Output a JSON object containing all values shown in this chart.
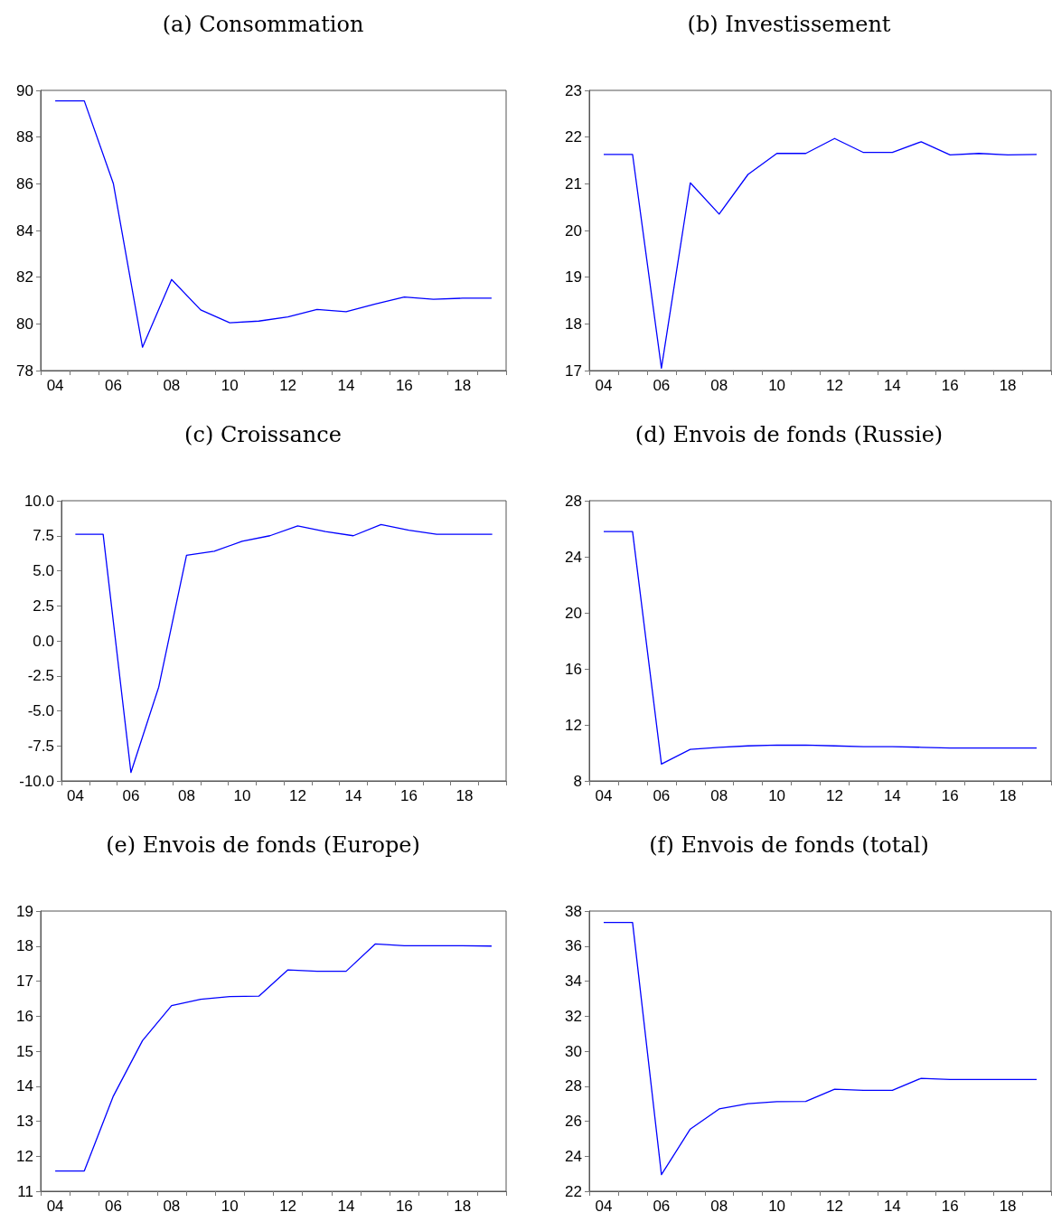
{
  "chart_data": [
    {
      "type": "line",
      "title": "(a) Consommation",
      "categories": [
        "04",
        null,
        "06",
        null,
        "08",
        null,
        "10",
        null,
        "12",
        null,
        "14",
        null,
        "16",
        null,
        "18",
        null
      ],
      "series": [
        {
          "color": "#0000ff",
          "values": [
            89.55,
            89.55,
            86.0,
            79.0,
            81.9,
            80.6,
            80.05,
            80.12,
            80.3,
            80.62,
            80.52,
            80.85,
            81.15,
            81.05,
            81.1,
            81.1
          ]
        }
      ],
      "ylim": [
        78,
        90
      ],
      "yticks": [
        78,
        80,
        82,
        84,
        86,
        88,
        90
      ],
      "marker": "none",
      "line_style": "solid"
    },
    {
      "type": "line",
      "title": "(b) Investissement",
      "categories": [
        "04",
        null,
        "06",
        null,
        "08",
        null,
        "10",
        null,
        "12",
        null,
        "14",
        null,
        "16",
        null,
        "18",
        null
      ],
      "series": [
        {
          "color": "#0000ff",
          "values": [
            21.63,
            21.63,
            17.05,
            21.02,
            20.35,
            21.2,
            21.65,
            21.65,
            21.97,
            21.67,
            21.67,
            21.9,
            21.62,
            21.65,
            21.62,
            21.63
          ]
        }
      ],
      "ylim": [
        17,
        23
      ],
      "yticks": [
        17,
        18,
        19,
        20,
        21,
        22,
        23
      ],
      "marker": "none",
      "line_style": "solid"
    },
    {
      "type": "line",
      "title": "(c) Croissance",
      "categories": [
        "04",
        null,
        "06",
        null,
        "08",
        null,
        "10",
        null,
        "12",
        null,
        "14",
        null,
        "16",
        null,
        "18",
        null
      ],
      "series": [
        {
          "color": "#0000ff",
          "values": [
            7.6,
            7.6,
            -9.4,
            -3.3,
            6.1,
            6.4,
            7.1,
            7.5,
            8.2,
            7.8,
            7.5,
            8.3,
            7.9,
            7.6,
            7.6,
            7.6
          ]
        }
      ],
      "ylim": [
        -10,
        10
      ],
      "yticks": [
        {
          "value": -10,
          "label": "-10.0"
        },
        {
          "value": -7.5,
          "label": "-7.5"
        },
        {
          "value": -5,
          "label": "-5.0"
        },
        {
          "value": -2.5,
          "label": "-2.5"
        },
        {
          "value": 0,
          "label": "0.0"
        },
        {
          "value": 2.5,
          "label": "2.5"
        },
        {
          "value": 5,
          "label": "5.0"
        },
        {
          "value": 7.5,
          "label": "7.5"
        },
        {
          "value": 10,
          "label": "10.0"
        }
      ],
      "marker": "none",
      "line_style": "solid"
    },
    {
      "type": "line",
      "title": "(d) Envois de fonds (Russie)",
      "categories": [
        "04",
        null,
        "06",
        null,
        "08",
        null,
        "10",
        null,
        "12",
        null,
        "14",
        null,
        "16",
        null,
        "18",
        null
      ],
      "series": [
        {
          "color": "#0000ff",
          "values": [
            25.8,
            25.8,
            9.2,
            10.25,
            10.4,
            10.5,
            10.55,
            10.55,
            10.5,
            10.45,
            10.45,
            10.4,
            10.35,
            10.35,
            10.35,
            10.35
          ]
        }
      ],
      "ylim": [
        8,
        28
      ],
      "yticks": [
        8,
        12,
        16,
        20,
        24,
        28
      ],
      "marker": "none",
      "line_style": "solid"
    },
    {
      "type": "line",
      "title": "(e) Envois de fonds (Europe)",
      "categories": [
        "04",
        null,
        "06",
        null,
        "08",
        null,
        "10",
        null,
        "12",
        null,
        "14",
        null,
        "16",
        null,
        "18",
        null
      ],
      "series": [
        {
          "color": "#0000ff",
          "values": [
            11.58,
            11.58,
            13.72,
            15.3,
            16.3,
            16.48,
            16.56,
            16.57,
            17.32,
            17.28,
            17.28,
            18.06,
            18.01,
            18.01,
            18.01,
            18.0
          ]
        }
      ],
      "ylim": [
        11,
        19
      ],
      "yticks": [
        11,
        12,
        13,
        14,
        15,
        16,
        17,
        18,
        19
      ],
      "marker": "none",
      "line_style": "solid"
    },
    {
      "type": "line",
      "title": "(f) Envois de fonds (total)",
      "categories": [
        "04",
        null,
        "06",
        null,
        "08",
        null,
        "10",
        null,
        "12",
        null,
        "14",
        null,
        "16",
        null,
        "18",
        null
      ],
      "series": [
        {
          "color": "#0000ff",
          "values": [
            37.35,
            37.35,
            22.95,
            25.55,
            26.7,
            27.0,
            27.12,
            27.13,
            27.83,
            27.76,
            27.76,
            28.45,
            28.38,
            28.38,
            28.38,
            28.38
          ]
        }
      ],
      "ylim": [
        22,
        38
      ],
      "yticks": [
        22,
        24,
        26,
        28,
        30,
        32,
        34,
        36,
        38
      ],
      "marker": "none",
      "line_style": "solid"
    }
  ]
}
